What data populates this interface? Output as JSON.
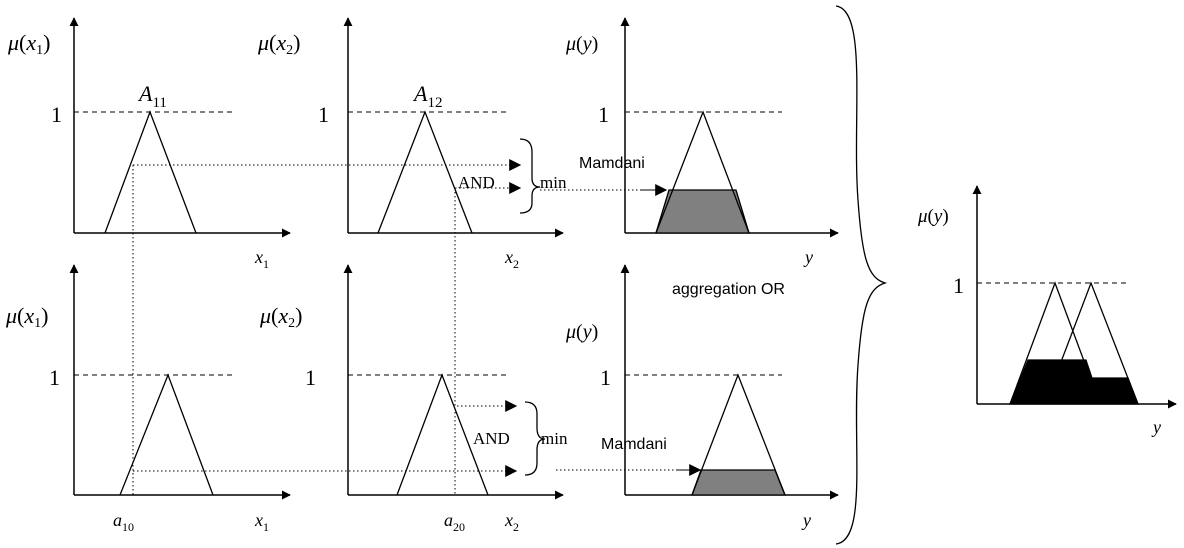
{
  "colors": {
    "ink": "#000000",
    "clipped_fill": "#808080",
    "aggregate_fill": "#000000",
    "background": "#ffffff"
  },
  "labels": {
    "mu": "μ",
    "x1": "x",
    "x2": "x",
    "sub1": "1",
    "sub2": "2",
    "y": "y",
    "one": "1",
    "A": "A",
    "A11_sub": "11",
    "A12_sub": "12",
    "and": "AND",
    "min": "min",
    "mamdani": "Mamdani",
    "aggregation": "aggregation OR",
    "a": "a",
    "a10_sub": "10",
    "a20_sub": "20"
  }
}
